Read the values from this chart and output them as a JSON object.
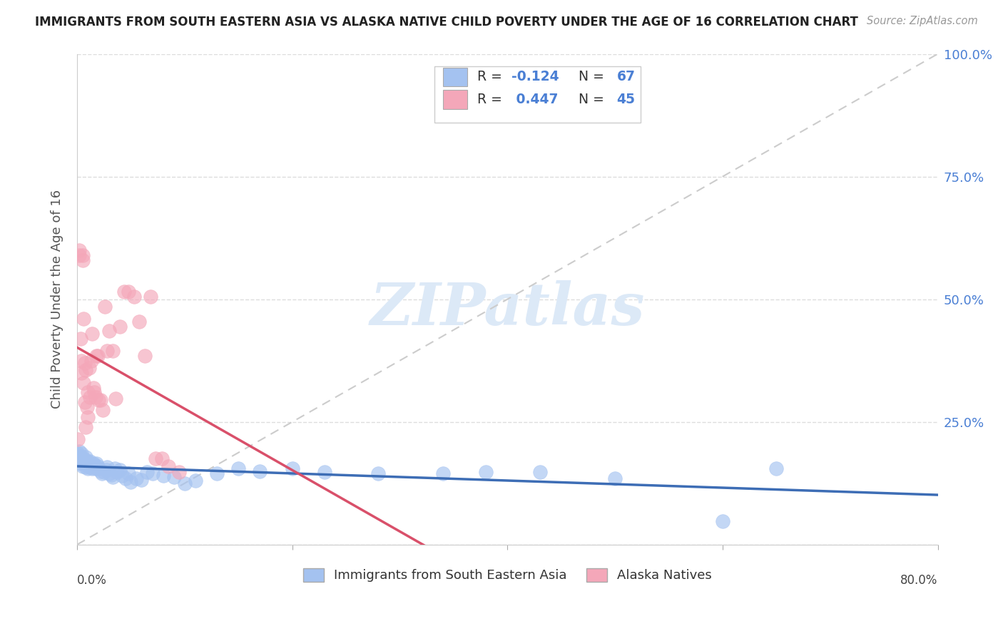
{
  "title": "IMMIGRANTS FROM SOUTH EASTERN ASIA VS ALASKA NATIVE CHILD POVERTY UNDER THE AGE OF 16 CORRELATION CHART",
  "source": "Source: ZipAtlas.com",
  "ylabel": "Child Poverty Under the Age of 16",
  "xlim": [
    0,
    0.8
  ],
  "ylim": [
    0,
    1.0
  ],
  "blue_color": "#a4c2f0",
  "pink_color": "#f4a7b9",
  "blue_line_color": "#3d6db5",
  "pink_line_color": "#d9506a",
  "diagonal_color": "#cccccc",
  "watermark_color": "#dce9f7",
  "blue_r": -0.124,
  "pink_r": 0.447,
  "blue_n": 67,
  "pink_n": 45,
  "blue_scatter_x": [
    0.001,
    0.002,
    0.002,
    0.003,
    0.003,
    0.004,
    0.004,
    0.005,
    0.005,
    0.006,
    0.006,
    0.007,
    0.007,
    0.008,
    0.008,
    0.009,
    0.009,
    0.01,
    0.01,
    0.011,
    0.011,
    0.012,
    0.012,
    0.013,
    0.014,
    0.015,
    0.015,
    0.016,
    0.017,
    0.018,
    0.019,
    0.02,
    0.022,
    0.023,
    0.025,
    0.027,
    0.028,
    0.03,
    0.032,
    0.033,
    0.035,
    0.037,
    0.04,
    0.042,
    0.045,
    0.048,
    0.05,
    0.055,
    0.06,
    0.065,
    0.07,
    0.08,
    0.09,
    0.1,
    0.11,
    0.13,
    0.15,
    0.17,
    0.2,
    0.23,
    0.28,
    0.34,
    0.38,
    0.43,
    0.5,
    0.6,
    0.65
  ],
  "blue_scatter_y": [
    0.185,
    0.19,
    0.175,
    0.18,
    0.165,
    0.175,
    0.185,
    0.17,
    0.16,
    0.175,
    0.168,
    0.172,
    0.165,
    0.178,
    0.158,
    0.168,
    0.162,
    0.17,
    0.155,
    0.165,
    0.158,
    0.17,
    0.16,
    0.162,
    0.155,
    0.165,
    0.158,
    0.162,
    0.155,
    0.165,
    0.16,
    0.155,
    0.15,
    0.145,
    0.148,
    0.152,
    0.158,
    0.145,
    0.142,
    0.138,
    0.155,
    0.148,
    0.152,
    0.14,
    0.135,
    0.145,
    0.128,
    0.135,
    0.132,
    0.148,
    0.145,
    0.14,
    0.138,
    0.125,
    0.13,
    0.145,
    0.155,
    0.15,
    0.155,
    0.148,
    0.145,
    0.145,
    0.148,
    0.148,
    0.135,
    0.048,
    0.155
  ],
  "pink_scatter_x": [
    0.001,
    0.002,
    0.002,
    0.003,
    0.004,
    0.004,
    0.005,
    0.005,
    0.006,
    0.006,
    0.007,
    0.007,
    0.008,
    0.008,
    0.009,
    0.01,
    0.01,
    0.011,
    0.012,
    0.013,
    0.014,
    0.015,
    0.016,
    0.017,
    0.018,
    0.019,
    0.02,
    0.022,
    0.024,
    0.026,
    0.028,
    0.03,
    0.033,
    0.036,
    0.04,
    0.044,
    0.048,
    0.053,
    0.058,
    0.063,
    0.068,
    0.073,
    0.079,
    0.085,
    0.095
  ],
  "pink_scatter_y": [
    0.215,
    0.6,
    0.59,
    0.42,
    0.375,
    0.35,
    0.59,
    0.58,
    0.46,
    0.33,
    0.29,
    0.37,
    0.24,
    0.355,
    0.28,
    0.31,
    0.26,
    0.36,
    0.3,
    0.375,
    0.43,
    0.32,
    0.31,
    0.3,
    0.385,
    0.385,
    0.295,
    0.295,
    0.275,
    0.485,
    0.395,
    0.435,
    0.395,
    0.298,
    0.445,
    0.515,
    0.515,
    0.505,
    0.455,
    0.385,
    0.505,
    0.175,
    0.175,
    0.16,
    0.148
  ]
}
